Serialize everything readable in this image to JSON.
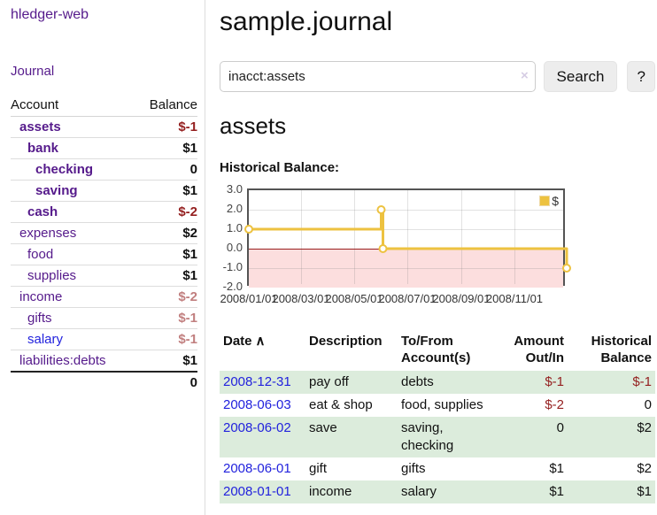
{
  "app": {
    "brand": "hledger-web",
    "nav_journal": "Journal"
  },
  "colors": {
    "link_purple": "#551a8b",
    "link_blue": "#2222dd",
    "negative_strong": "#941f1f",
    "negative_faint": "#c17f7f",
    "row_green": "#dcecdc",
    "chart_gold": "#edc240",
    "chart_negative_bg": "#fcdede",
    "chart_border": "#545454"
  },
  "sidebar": {
    "header": {
      "account": "Account",
      "balance": "Balance"
    },
    "accounts": [
      {
        "name": "assets",
        "depth": 1,
        "bold": true,
        "balance": "$-1",
        "neg": "strong"
      },
      {
        "name": "bank",
        "depth": 2,
        "bold": true,
        "balance": "$1"
      },
      {
        "name": "checking",
        "depth": 3,
        "bold": true,
        "balance": "0"
      },
      {
        "name": "saving",
        "depth": 3,
        "bold": true,
        "balance": "$1"
      },
      {
        "name": "cash",
        "depth": 2,
        "bold": true,
        "balance": "$-2",
        "neg": "strong"
      },
      {
        "name": "expenses",
        "depth": 1,
        "bold": false,
        "balance": "$2"
      },
      {
        "name": "food",
        "depth": 2,
        "bold": false,
        "balance": "$1"
      },
      {
        "name": "supplies",
        "depth": 2,
        "bold": false,
        "balance": "$1"
      },
      {
        "name": "income",
        "depth": 1,
        "bold": false,
        "balance": "$-2",
        "neg": "faint"
      },
      {
        "name": "gifts",
        "depth": 2,
        "bold": false,
        "balance": "$-1",
        "neg": "faint"
      },
      {
        "name": "salary",
        "depth": 2,
        "bold": false,
        "balance": "$-1",
        "neg": "faint",
        "blue": true
      },
      {
        "name": "liabilities:debts",
        "depth": 1,
        "bold": false,
        "balance": "$1"
      }
    ],
    "total": "0"
  },
  "main": {
    "title": "sample.journal",
    "search": {
      "value": "inacct:assets",
      "clear_icon": "×",
      "button": "Search",
      "help": "?"
    },
    "account_heading": "assets",
    "chart_label": "Historical Balance:"
  },
  "chart_data": {
    "type": "line",
    "title": "Historical Balance:",
    "series": [
      {
        "name": "$",
        "color": "#edc240",
        "steps": true,
        "points": [
          [
            "2008-01-01",
            1
          ],
          [
            "2008-06-01",
            2
          ],
          [
            "2008-06-03",
            0
          ],
          [
            "2008-12-31",
            -1
          ]
        ]
      }
    ],
    "x_ticks": [
      "2008/01/01",
      "2008/03/01",
      "2008/05/01",
      "2008/07/01",
      "2008/09/01",
      "2008/11/01"
    ],
    "y_ticks": [
      3.0,
      2.0,
      1.0,
      0.0,
      -1.0,
      -2.0
    ],
    "xlim": [
      "2008-01-01",
      "2008-12-31"
    ],
    "ylim": [
      -2,
      3
    ],
    "grid": true,
    "negative_region_color": "#fcdede",
    "zero_line_color": "#991f1f",
    "legend": {
      "label": "$",
      "position": "top-right"
    }
  },
  "transactions": {
    "headers": {
      "date": "Date",
      "sort_icon": "∧",
      "description": "Description",
      "accounts": "To/From Account(s)",
      "amount": "Amount Out/In",
      "balance": "Historical Balance"
    },
    "rows": [
      {
        "date": "2008-12-31",
        "description": "pay off",
        "accounts": "debts",
        "amount": "$-1",
        "amount_negative": true,
        "balance": "$-1",
        "balance_negative": true
      },
      {
        "date": "2008-06-03",
        "description": "eat & shop",
        "accounts": "food, supplies",
        "amount": "$-2",
        "amount_negative": true,
        "balance": "0",
        "balance_negative": false
      },
      {
        "date": "2008-06-02",
        "description": "save",
        "accounts": "saving, checking",
        "amount": "0",
        "amount_negative": false,
        "balance": "$2",
        "balance_negative": false
      },
      {
        "date": "2008-06-01",
        "description": "gift",
        "accounts": "gifts",
        "amount": "$1",
        "amount_negative": false,
        "balance": "$2",
        "balance_negative": false
      },
      {
        "date": "2008-01-01",
        "description": "income",
        "accounts": "salary",
        "amount": "$1",
        "amount_negative": false,
        "balance": "$1",
        "balance_negative": false
      }
    ]
  }
}
